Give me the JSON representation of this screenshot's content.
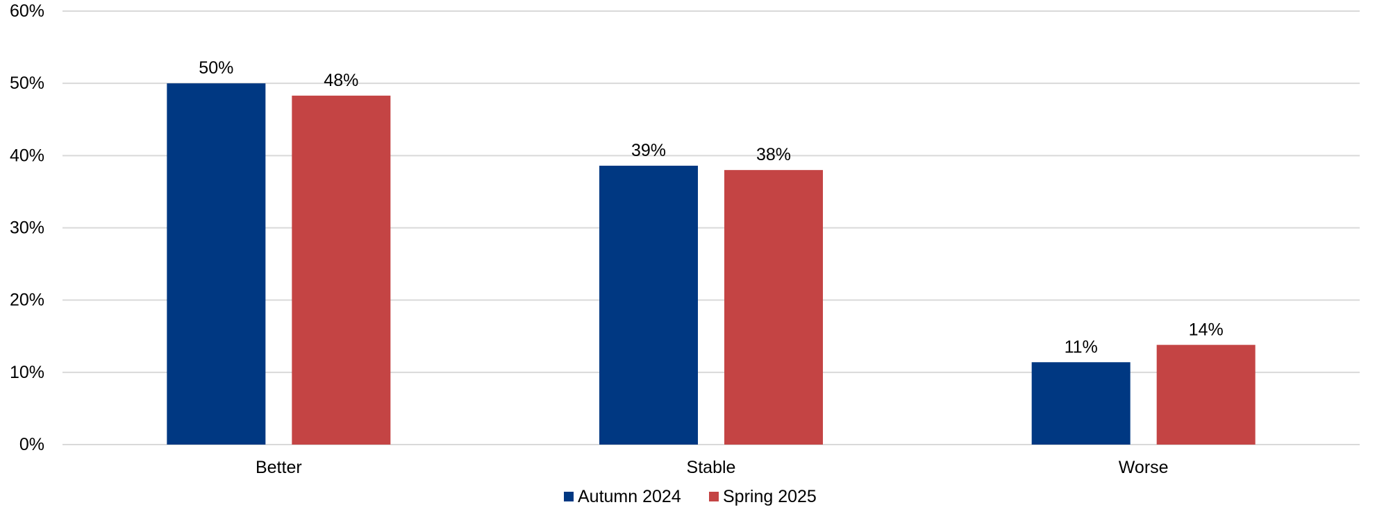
{
  "chart_data": {
    "type": "bar",
    "categories": [
      "Better",
      "Stable",
      "Worse"
    ],
    "series": [
      {
        "name": "Autumn 2024",
        "values": [
          50,
          38.6,
          11.4
        ],
        "labels": [
          "50%",
          "39%",
          "11%"
        ],
        "color": "#003882"
      },
      {
        "name": "Spring 2025",
        "values": [
          48.3,
          38,
          13.8
        ],
        "labels": [
          "48%",
          "38%",
          "14%"
        ],
        "color": "#c44444"
      }
    ],
    "yticks": [
      "0%",
      "10%",
      "20%",
      "30%",
      "40%",
      "50%",
      "60%"
    ],
    "ylim": [
      0,
      60
    ],
    "ystep": 10,
    "grid": true,
    "legend_position": "bottom"
  }
}
